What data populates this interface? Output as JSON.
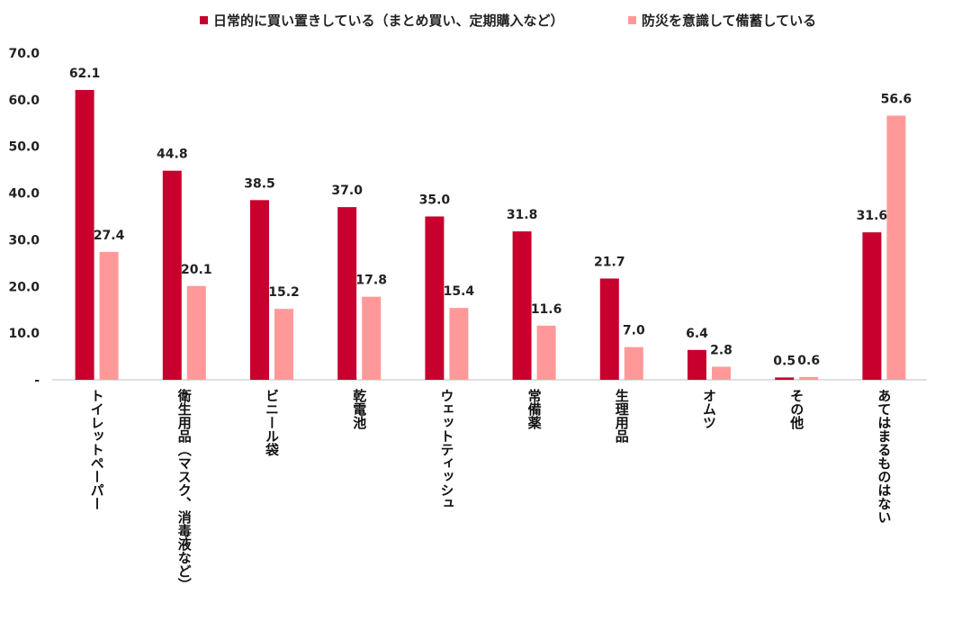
{
  "chart_data": {
    "type": "bar",
    "title": "",
    "xlabel": "",
    "ylabel": "",
    "ylim": [
      0,
      70
    ],
    "yticks": [
      "-",
      "10.0",
      "20.0",
      "30.0",
      "40.0",
      "50.0",
      "60.0",
      "70.0"
    ],
    "grid": false,
    "legend_position": "top",
    "categories": [
      "トイレットペーパー",
      "衛生用品（マスク、消毒液など）",
      "ビニール袋",
      "乾電池",
      "ウェットティッシュ",
      "常備薬",
      "生理用品",
      "オムツ",
      "その他",
      "あてはまるものはない"
    ],
    "series": [
      {
        "name": "日常的に買い置きしている（まとめ買い、定期購入など）",
        "color": "#c8002d",
        "values": [
          62.1,
          44.8,
          38.5,
          37.0,
          35.0,
          31.8,
          21.7,
          6.4,
          0.5,
          31.6
        ],
        "labels": [
          "62.1",
          "44.8",
          "38.5",
          "37.0",
          "35.0",
          "31.8",
          "21.7",
          "6.4",
          "0.5",
          "31.6"
        ]
      },
      {
        "name": "防災を意識して備蓄している",
        "color": "#ff9999",
        "values": [
          27.4,
          20.1,
          15.2,
          17.8,
          15.4,
          11.6,
          7.0,
          2.8,
          0.6,
          56.6
        ],
        "labels": [
          "27.4",
          "20.1",
          "15.2",
          "17.8",
          "15.4",
          "11.6",
          "7.0",
          "2.8",
          "0.6",
          "56.6"
        ]
      }
    ]
  }
}
